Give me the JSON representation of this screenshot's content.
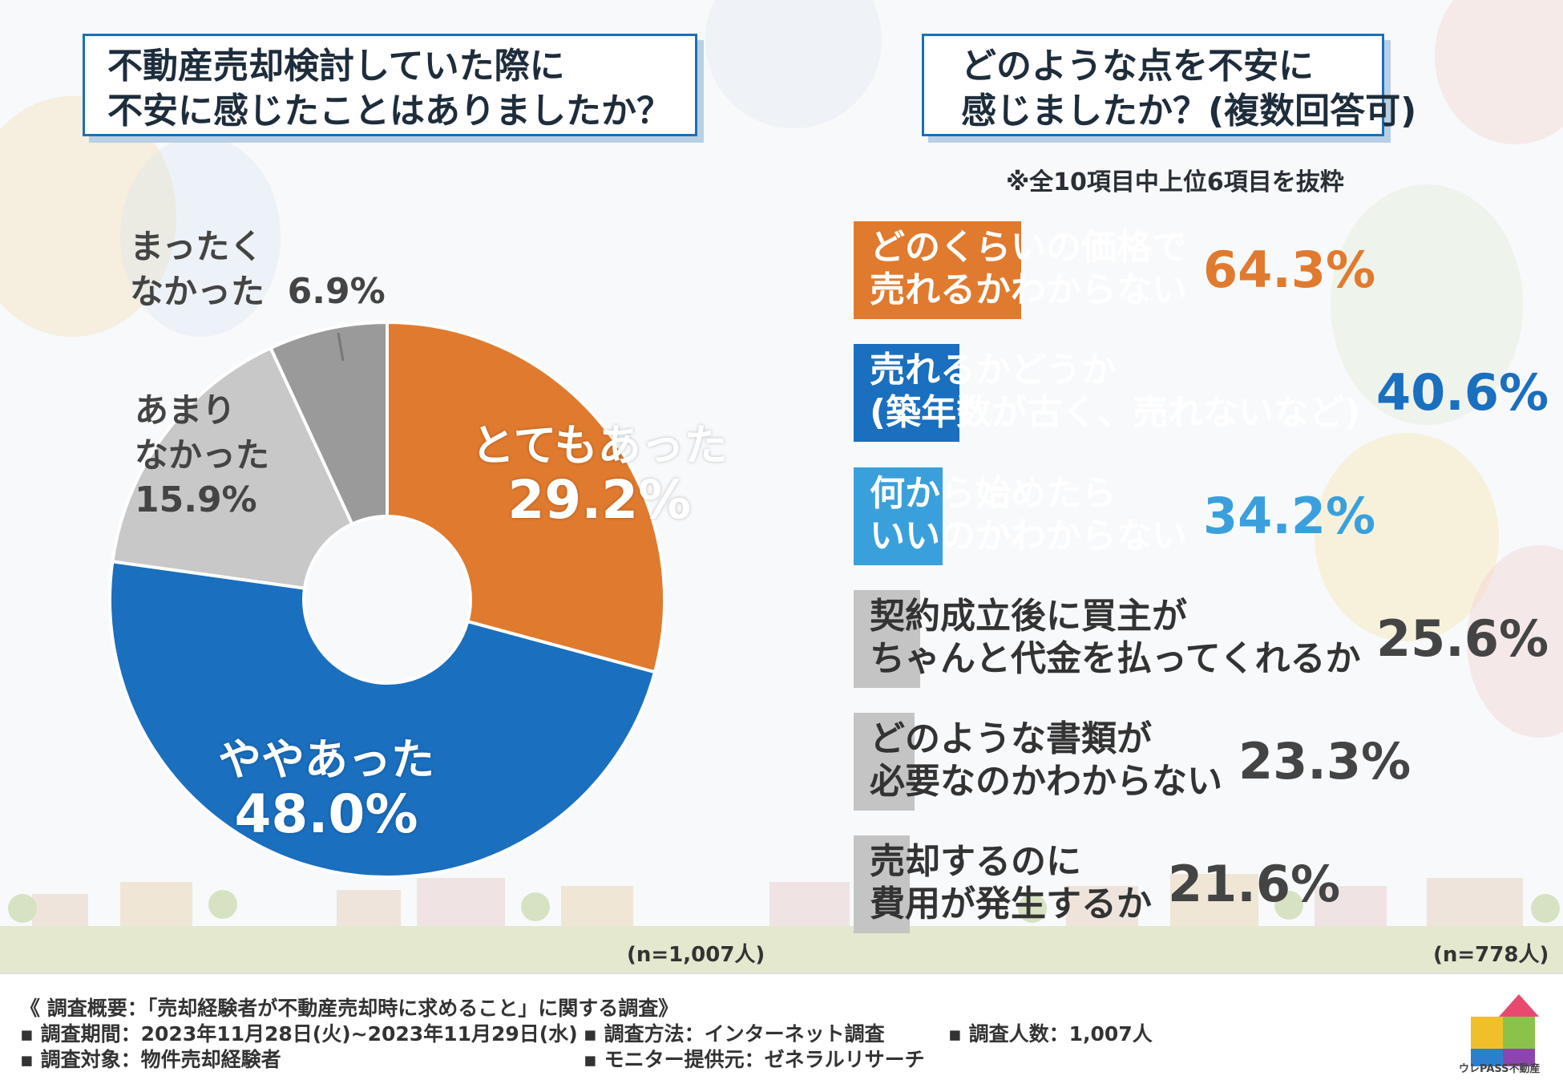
{
  "left_title": {
    "line1": "不動産売却検討していた際に",
    "line2": "不安に感じたことはありましたか？"
  },
  "right_title": {
    "line1": "どのような点を不安に",
    "line2": "感じましたか？(複数回答可)"
  },
  "right_note": "※全10項目中上位6項目を抜粋",
  "chart_data": [
    {
      "type": "pie",
      "variant": "donut",
      "title": "不動産売却検討していた際に不安に感じたことはありましたか？",
      "slices": [
        {
          "label_line1": "とてもあった",
          "label_line2": "",
          "value": 29.2,
          "display": "29.2%",
          "color": "#e07a2e"
        },
        {
          "label_line1": "ややあった",
          "label_line2": "",
          "value": 48.0,
          "display": "48.0%",
          "color": "#1a6fbf"
        },
        {
          "label_line1": "あまり",
          "label_line2": "なかった",
          "value": 15.9,
          "display": "15.9%",
          "color": "#c8c8c8"
        },
        {
          "label_line1": "まったく",
          "label_line2": "なかった",
          "value": 6.9,
          "display": "6.9%",
          "color": "#9a9a9a"
        }
      ],
      "n_label": "(n=1,007人)"
    },
    {
      "type": "bar",
      "orientation": "horizontal",
      "title": "どのような点を不安に感じましたか？(複数回答可)",
      "xlim": [
        0,
        100
      ],
      "bars": [
        {
          "line1": "どのくらいの価格で",
          "line2": "売れるかわからない",
          "value": 64.3,
          "display": "64.3%",
          "color": "#e07a2e",
          "text_color": "#ffffff",
          "pct_color": "#e07a2e"
        },
        {
          "line1": "売れるかどうか",
          "line2": "(築年数が古く、売れないなど)",
          "value": 40.6,
          "display": "40.6%",
          "color": "#1a6fbf",
          "text_color": "#ffffff",
          "pct_color": "#1a6fbf"
        },
        {
          "line1": "何から始めたら",
          "line2": "いいのかわからない",
          "value": 34.2,
          "display": "34.2%",
          "color": "#3aa0dc",
          "text_color": "#ffffff",
          "pct_color": "#3aa0dc"
        },
        {
          "line1": "契約成立後に買主が",
          "line2": "ちゃんと代金を払ってくれるか",
          "value": 25.6,
          "display": "25.6%",
          "color": "#c4c4c4",
          "text_color": "#333333",
          "pct_color": "#444444"
        },
        {
          "line1": "どのような書類が",
          "line2": "必要なのかわからない",
          "value": 23.3,
          "display": "23.3%",
          "color": "#c4c4c4",
          "text_color": "#333333",
          "pct_color": "#444444"
        },
        {
          "line1": "売却するのに",
          "line2": "費用が発生するか",
          "value": 21.6,
          "display": "21.6%",
          "color": "#c4c4c4",
          "text_color": "#333333",
          "pct_color": "#444444"
        }
      ],
      "n_label": "(n=778人)"
    }
  ],
  "survey": {
    "heading": "《 調査概要：「売却経験者が不動産売却時に求めること」に関する調査》",
    "period": "▪ 調査期間：2023年11月28日(火)~2023年11月29日(水)",
    "method": "▪ 調査方法：インターネット調査",
    "count": "▪ 調査人数：1,007人",
    "target": "▪ 調査対象：物件売却経験者",
    "monitor": "▪ モニター提供元：ゼネラルリサーチ"
  },
  "logo_text": "ウレPASS不動産"
}
